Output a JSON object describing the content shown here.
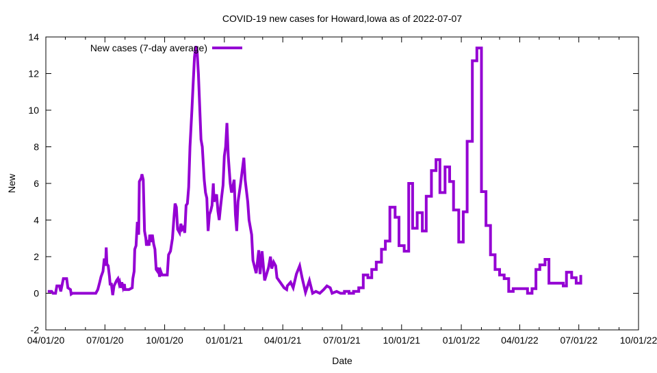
{
  "chart_data": {
    "type": "line",
    "title": "COVID-19 new cases for Howard,Iowa as of 2022-07-07",
    "xlabel": "Date",
    "ylabel": "New",
    "xlim": [
      "2020-04-01",
      "2022-10-01"
    ],
    "ylim": [
      -2,
      14
    ],
    "xticks": [
      "04/01/20",
      "07/01/20",
      "10/01/20",
      "01/01/21",
      "04/01/21",
      "07/01/21",
      "10/01/21",
      "01/01/22",
      "04/01/22",
      "07/01/22",
      "10/01/22"
    ],
    "xtick_dates": [
      "2020-04-01",
      "2020-07-01",
      "2020-10-01",
      "2021-01-01",
      "2021-04-01",
      "2021-07-01",
      "2021-10-01",
      "2022-01-01",
      "2022-04-01",
      "2022-07-01",
      "2022-10-01"
    ],
    "yticks": [
      -2,
      0,
      2,
      4,
      6,
      8,
      10,
      12,
      14
    ],
    "grid": false,
    "legend_position": "top-left",
    "series": [
      {
        "name": "New cases (7-day average)",
        "color": "#9400d3",
        "points": [
          [
            "2020-04-04",
            0.1
          ],
          [
            "2020-04-10",
            0.1
          ],
          [
            "2020-04-12",
            0
          ],
          [
            "2020-04-16",
            0
          ],
          [
            "2020-04-18",
            0.4
          ],
          [
            "2020-04-22",
            0.4
          ],
          [
            "2020-04-24",
            0.1
          ],
          [
            "2020-04-28",
            0.8
          ],
          [
            "2020-05-03",
            0.8
          ],
          [
            "2020-05-05",
            0.3
          ],
          [
            "2020-05-09",
            0.2
          ],
          [
            "2020-05-10",
            -0.05
          ],
          [
            "2020-05-12",
            0
          ],
          [
            "2020-06-17",
            0
          ],
          [
            "2020-06-20",
            0.2
          ],
          [
            "2020-06-23",
            0.6
          ],
          [
            "2020-06-25",
            0.9
          ],
          [
            "2020-06-28",
            1.2
          ],
          [
            "2020-06-30",
            1.9
          ],
          [
            "2020-07-02",
            1.5
          ],
          [
            "2020-07-03",
            2.5
          ],
          [
            "2020-07-04",
            1.6
          ],
          [
            "2020-07-06",
            1.5
          ],
          [
            "2020-07-08",
            0.9
          ],
          [
            "2020-07-09",
            0.5
          ],
          [
            "2020-07-11",
            0.5
          ],
          [
            "2020-07-13",
            -0.1
          ],
          [
            "2020-07-15",
            0.4
          ],
          [
            "2020-07-19",
            0.7
          ],
          [
            "2020-07-21",
            0.8
          ],
          [
            "2020-07-23",
            0.5
          ],
          [
            "2020-07-24",
            0.6
          ],
          [
            "2020-07-26",
            0.3
          ],
          [
            "2020-07-27",
            0.6
          ],
          [
            "2020-07-29",
            0.3
          ],
          [
            "2020-07-31",
            0.5
          ],
          [
            "2020-08-01",
            0.2
          ],
          [
            "2020-08-07",
            0.2
          ],
          [
            "2020-08-12",
            0.3
          ],
          [
            "2020-08-13",
            0.8
          ],
          [
            "2020-08-15",
            1.2
          ],
          [
            "2020-08-16",
            2.4
          ],
          [
            "2020-08-18",
            2.6
          ],
          [
            "2020-08-19",
            3.3
          ],
          [
            "2020-08-20",
            3.9
          ],
          [
            "2020-08-22",
            3.2
          ],
          [
            "2020-08-23",
            6.1
          ],
          [
            "2020-08-26",
            6.3
          ],
          [
            "2020-08-27",
            6.5
          ],
          [
            "2020-08-29",
            6.2
          ],
          [
            "2020-08-31",
            3.4
          ],
          [
            "2020-09-02",
            3.0
          ],
          [
            "2020-09-03",
            2.6
          ],
          [
            "2020-09-05",
            2.9
          ],
          [
            "2020-09-07",
            2.6
          ],
          [
            "2020-09-08",
            3.2
          ],
          [
            "2020-09-10",
            2.8
          ],
          [
            "2020-09-12",
            3.2
          ],
          [
            "2020-09-14",
            2.7
          ],
          [
            "2020-09-16",
            2.4
          ],
          [
            "2020-09-18",
            1.3
          ],
          [
            "2020-09-20",
            1.2
          ],
          [
            "2020-09-22",
            1.4
          ],
          [
            "2020-09-23",
            0.9
          ],
          [
            "2020-09-25",
            1.2
          ],
          [
            "2020-09-27",
            1.0
          ],
          [
            "2020-10-05",
            1.0
          ],
          [
            "2020-10-07",
            2.1
          ],
          [
            "2020-10-10",
            2.3
          ],
          [
            "2020-10-13",
            3.0
          ],
          [
            "2020-10-15",
            4.0
          ],
          [
            "2020-10-17",
            4.9
          ],
          [
            "2020-10-19",
            4.7
          ],
          [
            "2020-10-21",
            3.5
          ],
          [
            "2020-10-24",
            3.3
          ],
          [
            "2020-10-26",
            3.8
          ],
          [
            "2020-10-28",
            3.5
          ],
          [
            "2020-10-30",
            3.6
          ],
          [
            "2020-11-01",
            3.3
          ],
          [
            "2020-11-03",
            4.8
          ],
          [
            "2020-11-05",
            4.9
          ],
          [
            "2020-11-07",
            5.8
          ],
          [
            "2020-11-09",
            8.0
          ],
          [
            "2020-11-12",
            10.0
          ],
          [
            "2020-11-14",
            11.5
          ],
          [
            "2020-11-16",
            12.9
          ],
          [
            "2020-11-18",
            13.5
          ],
          [
            "2020-11-20",
            13.2
          ],
          [
            "2020-11-22",
            12.0
          ],
          [
            "2020-11-24",
            10.2
          ],
          [
            "2020-11-26",
            8.4
          ],
          [
            "2020-11-28",
            8.0
          ],
          [
            "2020-12-01",
            6.2
          ],
          [
            "2020-12-03",
            5.5
          ],
          [
            "2020-12-05",
            5.2
          ],
          [
            "2020-12-07",
            3.4
          ],
          [
            "2020-12-09",
            4.3
          ],
          [
            "2020-12-11",
            4.5
          ],
          [
            "2020-12-13",
            4.8
          ],
          [
            "2020-12-15",
            6.0
          ],
          [
            "2020-12-16",
            5.0
          ],
          [
            "2020-12-20",
            5.4
          ],
          [
            "2020-12-22",
            4.5
          ],
          [
            "2020-12-24",
            4.0
          ],
          [
            "2020-12-26",
            4.7
          ],
          [
            "2020-12-28",
            5.3
          ],
          [
            "2020-12-30",
            5.9
          ],
          [
            "2021-01-01",
            7.5
          ],
          [
            "2021-01-03",
            8.0
          ],
          [
            "2021-01-05",
            9.3
          ],
          [
            "2021-01-07",
            7.5
          ],
          [
            "2021-01-10",
            6.0
          ],
          [
            "2021-01-12",
            5.5
          ],
          [
            "2021-01-14",
            5.8
          ],
          [
            "2021-01-16",
            6.2
          ],
          [
            "2021-01-18",
            4.3
          ],
          [
            "2021-01-20",
            3.4
          ],
          [
            "2021-01-22",
            5.0
          ],
          [
            "2021-01-26",
            6.0
          ],
          [
            "2021-01-31",
            7.4
          ],
          [
            "2021-02-02",
            6.2
          ],
          [
            "2021-02-04",
            5.6
          ],
          [
            "2021-02-06",
            5.0
          ],
          [
            "2021-02-08",
            4.0
          ],
          [
            "2021-02-10",
            3.6
          ],
          [
            "2021-02-12",
            3.2
          ],
          [
            "2021-02-14",
            1.8
          ],
          [
            "2021-02-19",
            1.1
          ],
          [
            "2021-02-23",
            2.35
          ],
          [
            "2021-02-25",
            1.05
          ],
          [
            "2021-02-28",
            2.3
          ],
          [
            "2021-03-04",
            0.7
          ],
          [
            "2021-03-10",
            1.4
          ],
          [
            "2021-03-13",
            2.0
          ],
          [
            "2021-03-15",
            1.35
          ],
          [
            "2021-03-18",
            1.7
          ],
          [
            "2021-03-21",
            1.5
          ],
          [
            "2021-03-23",
            0.85
          ],
          [
            "2021-03-29",
            0.55
          ],
          [
            "2021-04-03",
            0.3
          ],
          [
            "2021-04-07",
            0.2
          ],
          [
            "2021-04-08",
            0.4
          ],
          [
            "2021-04-13",
            0.6
          ],
          [
            "2021-04-17",
            0.3
          ],
          [
            "2021-04-22",
            1.05
          ],
          [
            "2021-04-27",
            1.5
          ],
          [
            "2021-05-01",
            0.8
          ],
          [
            "2021-05-06",
            0.05
          ],
          [
            "2021-05-12",
            0.7
          ],
          [
            "2021-05-17",
            0
          ],
          [
            "2021-05-22",
            0.1
          ],
          [
            "2021-05-28",
            0
          ],
          [
            "2021-06-03",
            0.2
          ],
          [
            "2021-06-08",
            0.4
          ],
          [
            "2021-06-13",
            0.3
          ],
          [
            "2021-06-16",
            0
          ],
          [
            "2021-06-23",
            0.1
          ],
          [
            "2021-06-29",
            0
          ],
          [
            "2021-07-05",
            0.1
          ],
          [
            "2021-07-12",
            0
          ],
          [
            "2021-07-19",
            0.1
          ],
          [
            "2021-07-27",
            0.3
          ],
          [
            "2021-08-03",
            1.0
          ],
          [
            "2021-08-10",
            0.85
          ],
          [
            "2021-08-16",
            1.3
          ],
          [
            "2021-08-23",
            1.7
          ],
          [
            "2021-08-31",
            2.4
          ],
          [
            "2021-09-06",
            2.85
          ],
          [
            "2021-09-13",
            4.7
          ],
          [
            "2021-09-21",
            4.15
          ],
          [
            "2021-09-27",
            2.6
          ],
          [
            "2021-10-05",
            2.3
          ],
          [
            "2021-10-12",
            6.0
          ],
          [
            "2021-10-18",
            3.55
          ],
          [
            "2021-10-25",
            4.4
          ],
          [
            "2021-11-02",
            3.4
          ],
          [
            "2021-11-08",
            5.3
          ],
          [
            "2021-11-16",
            6.7
          ],
          [
            "2021-11-23",
            7.3
          ],
          [
            "2021-11-29",
            5.5
          ],
          [
            "2021-12-07",
            6.9
          ],
          [
            "2021-12-14",
            6.1
          ],
          [
            "2021-12-20",
            4.55
          ],
          [
            "2021-12-28",
            2.8
          ],
          [
            "2022-01-04",
            4.45
          ],
          [
            "2022-01-10",
            8.3
          ],
          [
            "2022-01-18",
            12.7
          ],
          [
            "2022-01-25",
            13.4
          ],
          [
            "2022-02-01",
            5.55
          ],
          [
            "2022-02-08",
            3.7
          ],
          [
            "2022-02-15",
            2.1
          ],
          [
            "2022-02-22",
            1.3
          ],
          [
            "2022-03-01",
            1.0
          ],
          [
            "2022-03-08",
            0.8
          ],
          [
            "2022-03-15",
            0.1
          ],
          [
            "2022-03-22",
            0.25
          ],
          [
            "2022-04-11",
            0.25
          ],
          [
            "2022-04-13",
            0
          ],
          [
            "2022-04-20",
            0.25
          ],
          [
            "2022-04-26",
            1.3
          ],
          [
            "2022-05-02",
            1.55
          ],
          [
            "2022-05-10",
            1.85
          ],
          [
            "2022-05-16",
            0.55
          ],
          [
            "2022-06-06",
            0.55
          ],
          [
            "2022-06-07",
            0.4
          ],
          [
            "2022-06-12",
            1.15
          ],
          [
            "2022-06-20",
            0.85
          ],
          [
            "2022-06-27",
            0.55
          ],
          [
            "2022-07-03",
            0.55
          ],
          [
            "2022-07-04",
            1.0
          ]
        ]
      }
    ]
  }
}
